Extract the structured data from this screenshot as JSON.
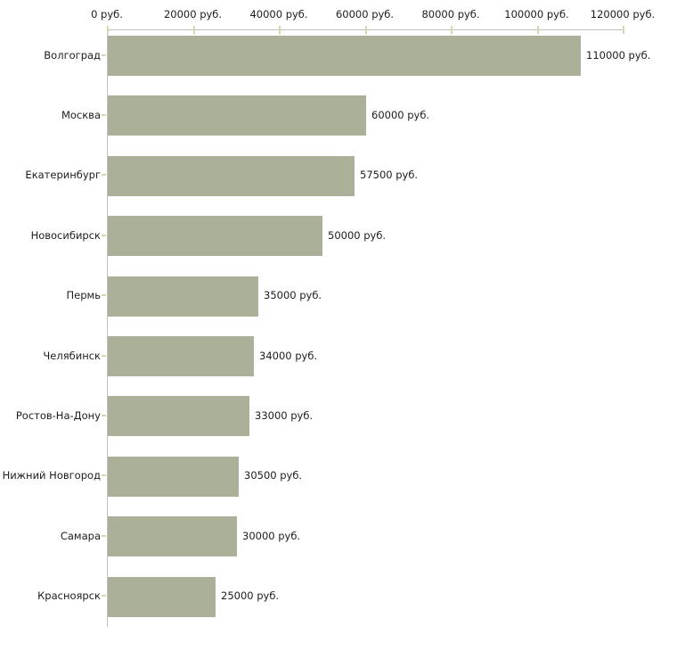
{
  "chart_data": {
    "type": "bar",
    "orientation": "horizontal",
    "title": "",
    "xlabel": "",
    "ylabel": "",
    "unit": "руб.",
    "categories": [
      "Волгоград",
      "Москва",
      "Екатеринбург",
      "Новосибирск",
      "Пермь",
      "Челябинск",
      "Ростов-На-Дону",
      "Нижний Новгород",
      "Самара",
      "Красноярск"
    ],
    "values": [
      110000,
      60000,
      57500,
      50000,
      35000,
      34000,
      33000,
      30500,
      30000,
      25000
    ],
    "bar_labels": [
      "110000 руб.",
      "60000 руб.",
      "57500 руб.",
      "50000 руб.",
      "35000 руб.",
      "34000 руб.",
      "33000 руб.",
      "30500 руб.",
      "30000 руб.",
      "25000 руб."
    ],
    "x_tick_values": [
      0,
      20000,
      40000,
      60000,
      80000,
      100000,
      120000
    ],
    "x_tick_labels": [
      "0 руб.",
      "20000 руб.",
      "40000 руб.",
      "60000 руб.",
      "80000 руб.",
      "100000 руб.",
      "120000 руб."
    ],
    "xlim": [
      0,
      120000
    ],
    "grid": false,
    "legend_position": "none",
    "colors": {
      "bar": "#abb198",
      "axis_line": "#c0c0c0",
      "tick_mark": "#d6d6b0",
      "text": "#1c1c1c",
      "background": "#ffffff"
    }
  }
}
